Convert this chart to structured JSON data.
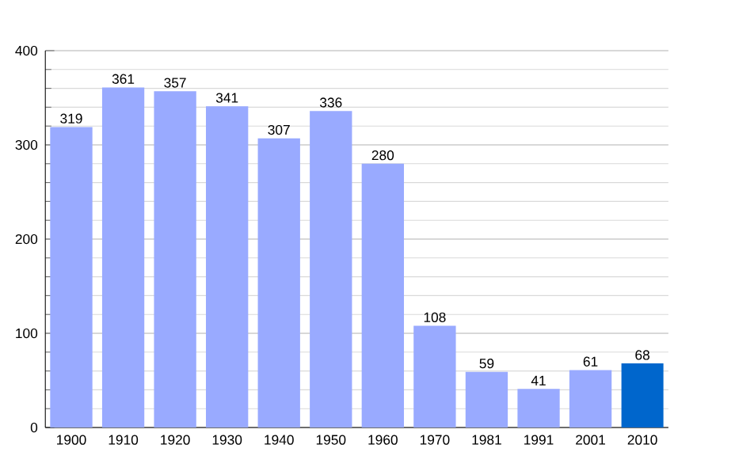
{
  "chart_data": {
    "type": "bar",
    "categories": [
      "1900",
      "1910",
      "1920",
      "1930",
      "1940",
      "1950",
      "1960",
      "1970",
      "1981",
      "1991",
      "2001",
      "2010"
    ],
    "values": [
      319,
      361,
      357,
      341,
      307,
      336,
      280,
      108,
      59,
      41,
      61,
      68
    ],
    "colors": [
      "#99aaff",
      "#99aaff",
      "#99aaff",
      "#99aaff",
      "#99aaff",
      "#99aaff",
      "#99aaff",
      "#99aaff",
      "#99aaff",
      "#99aaff",
      "#99aaff",
      "#0066cc"
    ],
    "ylim": [
      0,
      400
    ],
    "yticks": [
      0,
      100,
      200,
      300,
      400
    ],
    "grid": "y",
    "data_labels": true
  }
}
